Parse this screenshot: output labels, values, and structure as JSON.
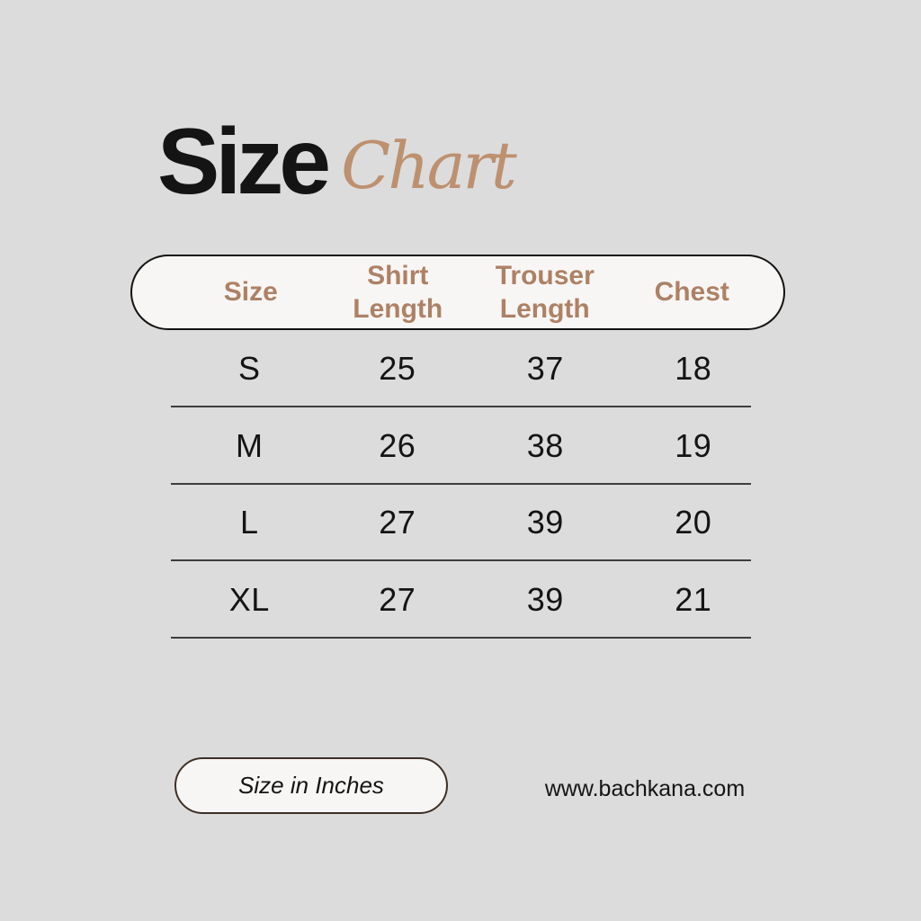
{
  "colors": {
    "background": "#dcdcdc",
    "ink": "#141414",
    "tan_script": "#bd906f",
    "tan_header": "#ad8166",
    "pill_fill": "#f8f6f4",
    "pill_border": "#121212",
    "note_border": "#3e2f26",
    "divider": "#3d3d3d"
  },
  "title": {
    "word1": "Size",
    "word2": "Chart"
  },
  "chart_data": {
    "type": "table",
    "title": "Size Chart",
    "columns": [
      "Size",
      "Shirt Length",
      "Trouser Length",
      "Chest"
    ],
    "header_lines": [
      [
        "Size"
      ],
      [
        "Shirt",
        "Length"
      ],
      [
        "Trouser",
        "Length"
      ],
      [
        "Chest"
      ]
    ],
    "rows": [
      [
        "S",
        25,
        37,
        18
      ],
      [
        "M",
        26,
        38,
        19
      ],
      [
        "L",
        27,
        39,
        20
      ],
      [
        "XL",
        27,
        39,
        21
      ]
    ],
    "units": "Inches",
    "note": "Size in Inches"
  },
  "footer": {
    "note": "Size in Inches",
    "website": "www.bachkana.com"
  }
}
